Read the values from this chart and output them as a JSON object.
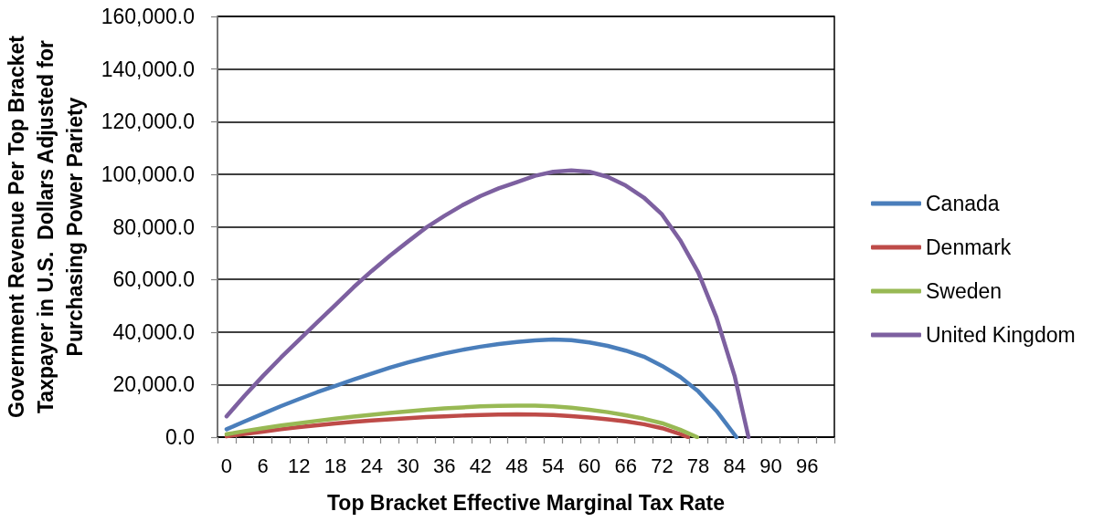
{
  "chart_data": {
    "type": "line",
    "xlabel": "Top Bracket Effective Marginal Tax Rate",
    "ylabel": "Government Revenue Per Top Bracket\nTaxpayer in U.S.  Dollars Adjusted for\nPurchasing Power Pariety",
    "xlim": [
      -1.5,
      100.5
    ],
    "xticks": [
      {
        "value": -1.5,
        "label": null
      },
      0,
      {
        "value": 1.5,
        "label": null
      },
      {
        "value": 4.5,
        "label": null
      },
      6,
      {
        "value": 7.5,
        "label": null
      },
      {
        "value": 10.5,
        "label": null
      },
      12,
      {
        "value": 13.5,
        "label": null
      },
      {
        "value": 16.5,
        "label": null
      },
      18,
      {
        "value": 19.5,
        "label": null
      },
      {
        "value": 22.5,
        "label": null
      },
      24,
      {
        "value": 25.5,
        "label": null
      },
      {
        "value": 28.5,
        "label": null
      },
      30,
      {
        "value": 31.5,
        "label": null
      },
      {
        "value": 34.5,
        "label": null
      },
      36,
      {
        "value": 37.5,
        "label": null
      },
      {
        "value": 40.5,
        "label": null
      },
      42,
      {
        "value": 43.5,
        "label": null
      },
      {
        "value": 46.5,
        "label": null
      },
      48,
      {
        "value": 49.5,
        "label": null
      },
      {
        "value": 52.5,
        "label": null
      },
      54,
      {
        "value": 55.5,
        "label": null
      },
      {
        "value": 58.5,
        "label": null
      },
      60,
      {
        "value": 61.5,
        "label": null
      },
      {
        "value": 64.5,
        "label": null
      },
      66,
      {
        "value": 67.5,
        "label": null
      },
      {
        "value": 70.5,
        "label": null
      },
      72,
      {
        "value": 73.5,
        "label": null
      },
      {
        "value": 76.5,
        "label": null
      },
      78,
      {
        "value": 79.5,
        "label": null
      },
      {
        "value": 82.5,
        "label": null
      },
      84,
      {
        "value": 85.5,
        "label": null
      },
      {
        "value": 88.5,
        "label": null
      },
      90,
      {
        "value": 91.5,
        "label": null
      },
      {
        "value": 94.5,
        "label": null
      },
      96,
      {
        "value": 97.5,
        "label": null
      },
      {
        "value": 100.5,
        "label": null
      }
    ],
    "ylim": [
      0,
      160000
    ],
    "yticks": [
      {
        "value": 0,
        "label": "0.0"
      },
      {
        "value": 20000,
        "label": "20,000.0"
      },
      {
        "value": 40000,
        "label": "40,000.0"
      },
      {
        "value": 60000,
        "label": "60,000.0"
      },
      {
        "value": 80000,
        "label": "80,000.0"
      },
      {
        "value": 100000,
        "label": "100,000.0"
      },
      {
        "value": 120000,
        "label": "120,000.0"
      },
      {
        "value": 140000,
        "label": "140,000.0"
      },
      {
        "value": 160000,
        "label": "160,000.0"
      }
    ],
    "grid": "y",
    "legend": "right",
    "marker": "none",
    "series": [
      {
        "name": "Canada",
        "color": "#4a7ebb",
        "x": [
          0,
          3,
          6,
          9,
          12,
          15,
          18,
          21,
          24,
          27,
          30,
          33,
          36,
          39,
          42,
          45,
          48,
          51,
          54,
          57,
          60,
          63,
          66,
          69,
          72,
          75,
          78,
          81,
          84.3
        ],
        "values": [
          3000,
          6000,
          8900,
          11800,
          14500,
          17100,
          19500,
          21900,
          24200,
          26400,
          28400,
          30200,
          31800,
          33200,
          34400,
          35400,
          36200,
          36800,
          37100,
          36900,
          36000,
          34700,
          32900,
          30600,
          27100,
          22900,
          17400,
          10000,
          0
        ]
      },
      {
        "name": "Denmark",
        "color": "#be4b48",
        "x": [
          0,
          3,
          6,
          9,
          12,
          15,
          18,
          21,
          24,
          27,
          30,
          33,
          36,
          39,
          42,
          45,
          48,
          51,
          54,
          57,
          60,
          63,
          66,
          69,
          72,
          75,
          76.3
        ],
        "values": [
          300,
          1200,
          2100,
          3000,
          3800,
          4500,
          5200,
          5800,
          6300,
          6800,
          7200,
          7600,
          7900,
          8200,
          8400,
          8600,
          8700,
          8600,
          8400,
          8000,
          7500,
          6800,
          6000,
          4900,
          3400,
          1200,
          0
        ]
      },
      {
        "name": "Sweden",
        "color": "#98b954",
        "x": [
          0,
          3,
          6,
          9,
          12,
          15,
          18,
          21,
          24,
          27,
          30,
          33,
          36,
          39,
          42,
          45,
          48,
          51,
          54,
          57,
          60,
          63,
          66,
          69,
          72,
          75,
          77.8
        ],
        "values": [
          1100,
          2300,
          3400,
          4400,
          5300,
          6200,
          7000,
          7800,
          8500,
          9200,
          9800,
          10400,
          10900,
          11300,
          11700,
          11900,
          12000,
          12000,
          11700,
          11200,
          10400,
          9500,
          8300,
          7000,
          5300,
          2800,
          0
        ]
      },
      {
        "name": "United Kingdom",
        "color": "#7d60a0",
        "x": [
          0,
          3,
          6,
          9,
          12,
          15,
          18,
          21,
          24,
          27,
          30,
          33,
          36,
          39,
          42,
          45,
          48,
          51,
          54,
          57,
          60,
          63,
          66,
          69,
          72,
          75,
          78,
          81,
          84,
          86.3
        ],
        "values": [
          7900,
          15800,
          23200,
          30300,
          37000,
          43700,
          50300,
          57000,
          63200,
          69000,
          74400,
          79700,
          84100,
          88200,
          91700,
          94600,
          97000,
          99400,
          100900,
          101400,
          100900,
          99000,
          95700,
          91100,
          84700,
          74900,
          62600,
          45500,
          23300,
          0
        ]
      }
    ]
  }
}
